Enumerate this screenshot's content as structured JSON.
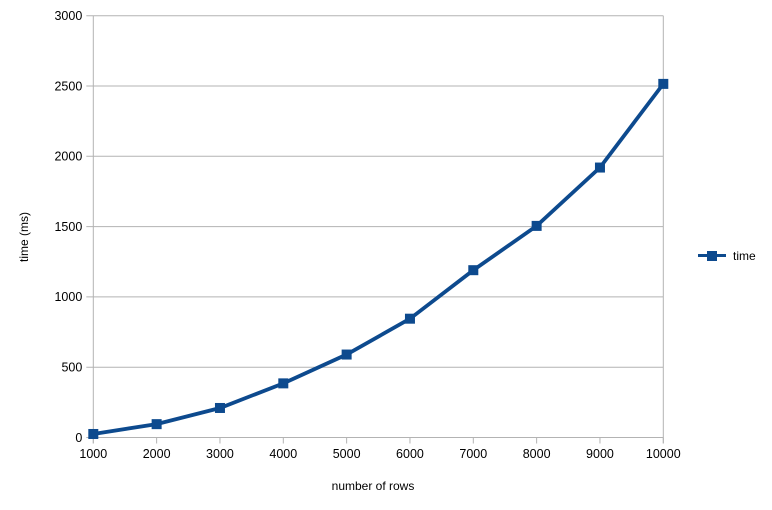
{
  "chart_data": {
    "type": "line",
    "title": "",
    "xlabel": "number of rows",
    "ylabel": "time (ms)",
    "x": [
      1000,
      2000,
      3000,
      4000,
      5000,
      6000,
      7000,
      8000,
      9000,
      10000
    ],
    "series": [
      {
        "name": "time",
        "values": [
          25,
          95,
          210,
          385,
          590,
          845,
          1190,
          1505,
          1920,
          2515
        ]
      }
    ],
    "xlim": [
      1000,
      10000
    ],
    "ylim": [
      0,
      3000
    ],
    "xticks": [
      1000,
      2000,
      3000,
      4000,
      5000,
      6000,
      7000,
      8000,
      9000,
      10000
    ],
    "yticks": [
      0,
      500,
      1000,
      1500,
      2000,
      2500,
      3000
    ],
    "grid": "horizontal-only",
    "legend_position": "right",
    "marker": "square",
    "colors": {
      "series": "#0d4a8e",
      "gridline": "#b3b3b3",
      "axis": "#b3b3b3",
      "text": "#000000",
      "background": "#ffffff"
    }
  }
}
